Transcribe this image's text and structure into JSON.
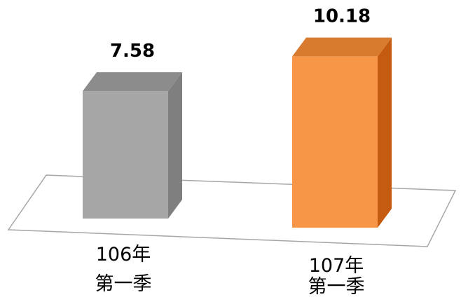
{
  "chart_data": {
    "type": "bar",
    "style": "3d-column",
    "categories": [
      [
        "106年",
        "第一季"
      ],
      [
        "107年",
        "第一季"
      ]
    ],
    "values": [
      7.58,
      10.18
    ],
    "value_labels": [
      "7.58",
      "10.18"
    ],
    "colors": {
      "bars": [
        "#a6a6a6",
        "#f79646"
      ],
      "bar_sides": [
        "#7f7f7f",
        "#c55a11"
      ],
      "bar_tops": [
        "#8c8c8c",
        "#d97b2f"
      ],
      "floor_stroke": "#a6a6a6"
    },
    "title": "",
    "xlabel": "",
    "ylabel": "",
    "grid": false,
    "legend": "none"
  }
}
